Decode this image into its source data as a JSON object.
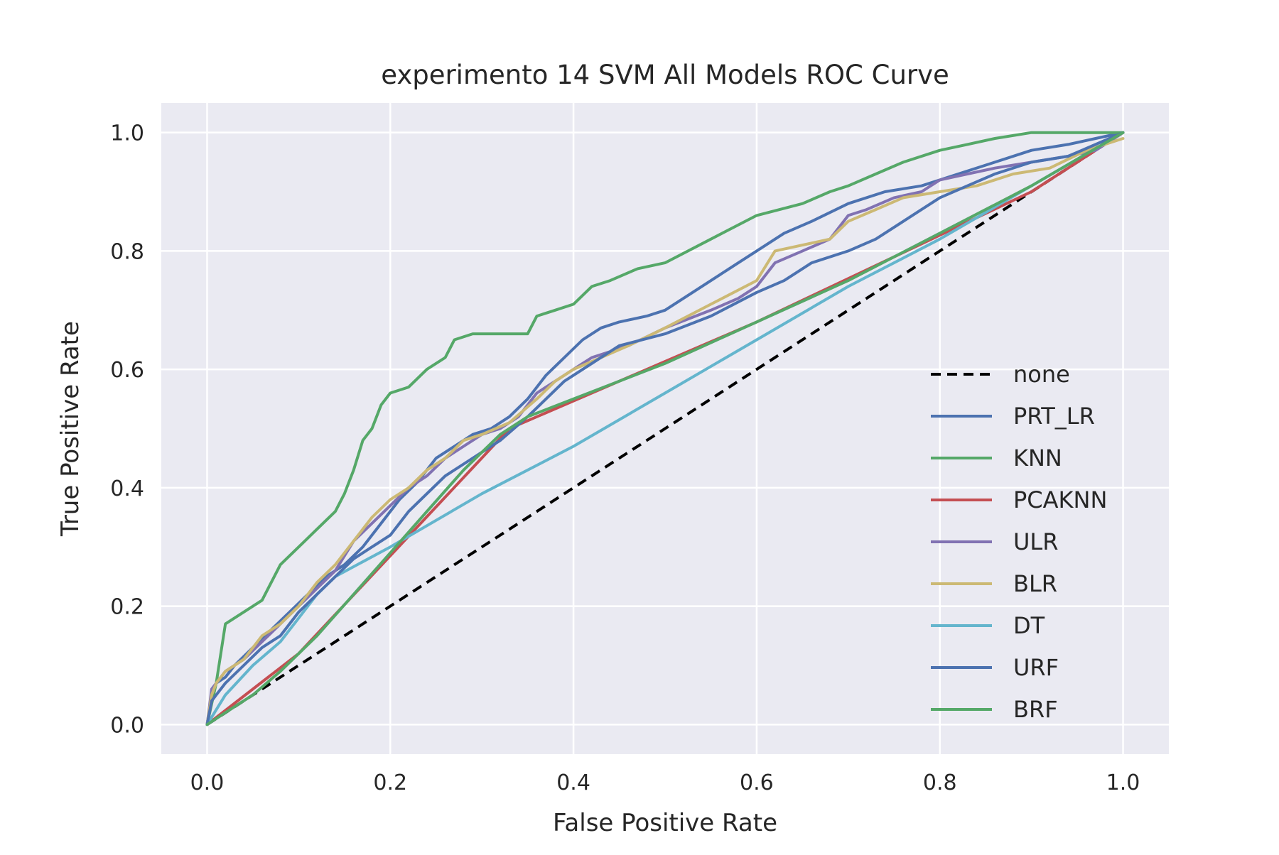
{
  "chart_data": {
    "type": "line",
    "title": "experimento 14 SVM All Models ROC Curve",
    "xlabel": "False Positive Rate",
    "ylabel": "True Positive Rate",
    "xlim": [
      -0.05,
      1.05
    ],
    "ylim": [
      -0.05,
      1.05
    ],
    "xticks": [
      "0.0",
      "0.2",
      "0.4",
      "0.6",
      "0.8",
      "1.0"
    ],
    "yticks": [
      "0.0",
      "0.2",
      "0.4",
      "0.6",
      "0.8",
      "1.0"
    ],
    "grid": true,
    "legend_position": "lower-right",
    "background": "#EAEAF2",
    "series": [
      {
        "name": "none",
        "color": "#000000",
        "style": "dashed",
        "x": [
          0,
          1
        ],
        "y": [
          0,
          1
        ]
      },
      {
        "name": "PRT_LR",
        "color": "#4C72B0",
        "style": "solid",
        "x": [
          0,
          0.005,
          0.01,
          0.02,
          0.03,
          0.05,
          0.07,
          0.09,
          0.11,
          0.13,
          0.15,
          0.17,
          0.19,
          0.21,
          0.23,
          0.25,
          0.27,
          0.29,
          0.31,
          0.33,
          0.35,
          0.37,
          0.39,
          0.41,
          0.43,
          0.45,
          0.48,
          0.5,
          0.53,
          0.56,
          0.58,
          0.6,
          0.63,
          0.66,
          0.7,
          0.74,
          0.78,
          0.82,
          0.86,
          0.9,
          0.94,
          0.97,
          1.0
        ],
        "y": [
          0,
          0.05,
          0.07,
          0.08,
          0.1,
          0.13,
          0.16,
          0.19,
          0.22,
          0.25,
          0.27,
          0.3,
          0.34,
          0.38,
          0.41,
          0.45,
          0.47,
          0.49,
          0.5,
          0.52,
          0.55,
          0.59,
          0.62,
          0.65,
          0.67,
          0.68,
          0.69,
          0.7,
          0.73,
          0.76,
          0.78,
          0.8,
          0.83,
          0.85,
          0.88,
          0.9,
          0.91,
          0.93,
          0.95,
          0.97,
          0.98,
          0.99,
          1.0
        ]
      },
      {
        "name": "KNN",
        "color": "#55A868",
        "style": "solid",
        "x": [
          0,
          0.01,
          0.02,
          0.04,
          0.06,
          0.08,
          0.1,
          0.12,
          0.14,
          0.15,
          0.16,
          0.17,
          0.18,
          0.19,
          0.2,
          0.22,
          0.24,
          0.26,
          0.27,
          0.29,
          0.32,
          0.35,
          0.36,
          0.38,
          0.4,
          0.42,
          0.44,
          0.47,
          0.5,
          0.55,
          0.6,
          0.65,
          0.68,
          0.7,
          0.73,
          0.76,
          0.8,
          0.83,
          0.86,
          0.9,
          0.94,
          1.0
        ],
        "y": [
          0,
          0.07,
          0.17,
          0.19,
          0.21,
          0.27,
          0.3,
          0.33,
          0.36,
          0.39,
          0.43,
          0.48,
          0.5,
          0.54,
          0.56,
          0.57,
          0.6,
          0.62,
          0.65,
          0.66,
          0.66,
          0.66,
          0.69,
          0.7,
          0.71,
          0.74,
          0.75,
          0.77,
          0.78,
          0.82,
          0.86,
          0.88,
          0.9,
          0.91,
          0.93,
          0.95,
          0.97,
          0.98,
          0.99,
          1.0,
          1.0,
          1.0
        ]
      },
      {
        "name": "PCAKNN",
        "color": "#C44E52",
        "style": "solid",
        "x": [
          0,
          0.1,
          0.33,
          0.6,
          0.75,
          0.9,
          1.0
        ],
        "y": [
          0,
          0.12,
          0.5,
          0.68,
          0.79,
          0.9,
          1.0
        ]
      },
      {
        "name": "ULR",
        "color": "#8172B2",
        "style": "solid",
        "x": [
          0,
          0.005,
          0.01,
          0.02,
          0.04,
          0.06,
          0.08,
          0.1,
          0.12,
          0.14,
          0.16,
          0.18,
          0.2,
          0.22,
          0.24,
          0.26,
          0.28,
          0.3,
          0.32,
          0.34,
          0.36,
          0.38,
          0.4,
          0.42,
          0.44,
          0.46,
          0.5,
          0.55,
          0.58,
          0.6,
          0.62,
          0.65,
          0.68,
          0.7,
          0.72,
          0.75,
          0.78,
          0.8,
          0.83,
          0.86,
          0.9,
          0.94,
          0.97,
          1.0
        ],
        "y": [
          0,
          0.06,
          0.07,
          0.09,
          0.11,
          0.14,
          0.17,
          0.2,
          0.23,
          0.26,
          0.31,
          0.34,
          0.37,
          0.4,
          0.42,
          0.45,
          0.47,
          0.49,
          0.5,
          0.52,
          0.56,
          0.58,
          0.6,
          0.62,
          0.63,
          0.64,
          0.67,
          0.7,
          0.72,
          0.74,
          0.78,
          0.8,
          0.82,
          0.86,
          0.87,
          0.89,
          0.9,
          0.92,
          0.93,
          0.94,
          0.95,
          0.96,
          0.97,
          1.0
        ]
      },
      {
        "name": "BLR",
        "color": "#CCB974",
        "style": "solid",
        "x": [
          0,
          0.005,
          0.01,
          0.02,
          0.04,
          0.06,
          0.08,
          0.1,
          0.12,
          0.14,
          0.16,
          0.18,
          0.2,
          0.22,
          0.24,
          0.26,
          0.28,
          0.3,
          0.33,
          0.36,
          0.38,
          0.4,
          0.43,
          0.46,
          0.5,
          0.55,
          0.6,
          0.62,
          0.65,
          0.68,
          0.7,
          0.73,
          0.76,
          0.8,
          0.84,
          0.88,
          0.92,
          0.96,
          1.0
        ],
        "y": [
          0,
          0.05,
          0.07,
          0.09,
          0.11,
          0.15,
          0.17,
          0.2,
          0.24,
          0.27,
          0.31,
          0.35,
          0.38,
          0.4,
          0.43,
          0.45,
          0.48,
          0.49,
          0.51,
          0.55,
          0.58,
          0.6,
          0.62,
          0.64,
          0.67,
          0.71,
          0.75,
          0.8,
          0.81,
          0.82,
          0.85,
          0.87,
          0.89,
          0.9,
          0.91,
          0.93,
          0.94,
          0.97,
          0.99
        ]
      },
      {
        "name": "DT",
        "color": "#64B5CD",
        "style": "solid",
        "x": [
          0,
          0.02,
          0.05,
          0.08,
          0.1,
          0.12,
          0.14,
          0.2,
          0.3,
          0.4,
          0.5,
          0.6,
          0.7,
          0.8,
          0.9,
          1.0
        ],
        "y": [
          0,
          0.05,
          0.1,
          0.14,
          0.18,
          0.22,
          0.25,
          0.3,
          0.39,
          0.47,
          0.56,
          0.65,
          0.74,
          0.82,
          0.91,
          1.0
        ]
      },
      {
        "name": "URF",
        "color": "#4C72B0",
        "style": "solid",
        "x": [
          0,
          0.005,
          0.01,
          0.02,
          0.04,
          0.06,
          0.08,
          0.1,
          0.12,
          0.14,
          0.16,
          0.18,
          0.2,
          0.22,
          0.24,
          0.26,
          0.28,
          0.3,
          0.32,
          0.35,
          0.37,
          0.39,
          0.42,
          0.45,
          0.5,
          0.55,
          0.6,
          0.63,
          0.66,
          0.7,
          0.73,
          0.76,
          0.78,
          0.8,
          0.83,
          0.86,
          0.9,
          0.94,
          0.97,
          1.0
        ],
        "y": [
          0,
          0.04,
          0.05,
          0.07,
          0.1,
          0.13,
          0.15,
          0.19,
          0.22,
          0.25,
          0.28,
          0.3,
          0.32,
          0.36,
          0.39,
          0.42,
          0.44,
          0.46,
          0.48,
          0.52,
          0.55,
          0.58,
          0.61,
          0.64,
          0.66,
          0.69,
          0.73,
          0.75,
          0.78,
          0.8,
          0.82,
          0.85,
          0.87,
          0.89,
          0.91,
          0.93,
          0.95,
          0.96,
          0.98,
          1.0
        ]
      },
      {
        "name": "BRF",
        "color": "#55A868",
        "style": "solid",
        "x": [
          0,
          0.02,
          0.05,
          0.08,
          0.1,
          0.12,
          0.16,
          0.2,
          0.24,
          0.28,
          0.32,
          0.35,
          0.4,
          0.5,
          0.6,
          0.7,
          0.8,
          0.9,
          1.0
        ],
        "y": [
          0,
          0.02,
          0.05,
          0.09,
          0.12,
          0.15,
          0.22,
          0.29,
          0.36,
          0.43,
          0.49,
          0.52,
          0.55,
          0.61,
          0.68,
          0.75,
          0.83,
          0.91,
          1.0
        ]
      }
    ]
  }
}
